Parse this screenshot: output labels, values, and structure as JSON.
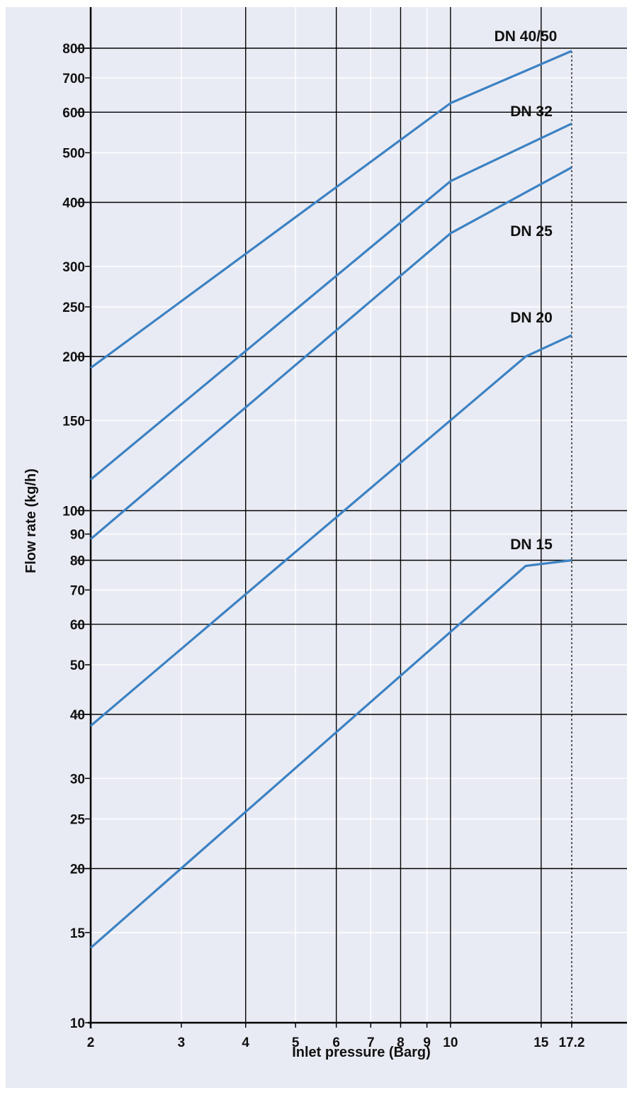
{
  "chart_data": {
    "type": "line",
    "title": "",
    "xlabel": "Inlet pressure (Barg)",
    "ylabel": "Flow rate (kg/h)",
    "x_scale": "log",
    "y_scale": "log",
    "xlim": [
      2,
      17.2
    ],
    "ylim": [
      10,
      800
    ],
    "x_ticks": [
      {
        "value": 2,
        "label": "2"
      },
      {
        "value": 3,
        "label": "3"
      },
      {
        "value": 4,
        "label": "4"
      },
      {
        "value": 5,
        "label": "5"
      },
      {
        "value": 6,
        "label": "6"
      },
      {
        "value": 7,
        "label": "7"
      },
      {
        "value": 8,
        "label": "8"
      },
      {
        "value": 9,
        "label": "9"
      },
      {
        "value": 10,
        "label": "10"
      },
      {
        "value": 15,
        "label": "15"
      },
      {
        "value": 17.2,
        "label": "17.2"
      }
    ],
    "y_ticks": [
      {
        "value": 10,
        "label": "10"
      },
      {
        "value": 15,
        "label": "15"
      },
      {
        "value": 20,
        "label": "20"
      },
      {
        "value": 25,
        "label": "25"
      },
      {
        "value": 30,
        "label": "30"
      },
      {
        "value": 40,
        "label": "40"
      },
      {
        "value": 50,
        "label": "50"
      },
      {
        "value": 60,
        "label": "60"
      },
      {
        "value": 70,
        "label": "70"
      },
      {
        "value": 80,
        "label": "80"
      },
      {
        "value": 90,
        "label": "90"
      },
      {
        "value": 100,
        "label": "100"
      },
      {
        "value": 150,
        "label": "150"
      },
      {
        "value": 200,
        "label": "200"
      },
      {
        "value": 250,
        "label": "250"
      },
      {
        "value": 300,
        "label": "300"
      },
      {
        "value": 400,
        "label": "400"
      },
      {
        "value": 500,
        "label": "500"
      },
      {
        "value": 600,
        "label": "600"
      },
      {
        "value": 700,
        "label": "700"
      },
      {
        "value": 800,
        "label": "800"
      }
    ],
    "major_gridlines_x": [
      4,
      6,
      8,
      10,
      15
    ],
    "major_gridlines_y": [
      10,
      20,
      40,
      60,
      80,
      100,
      200,
      400,
      600,
      800
    ],
    "reference_line_x": 17.2,
    "series": [
      {
        "name": "DN 40/50",
        "points": [
          [
            2,
            190
          ],
          [
            10,
            625
          ],
          [
            17.2,
            790
          ]
        ]
      },
      {
        "name": "DN 32",
        "points": [
          [
            2,
            115
          ],
          [
            10,
            440
          ],
          [
            17.2,
            570
          ]
        ]
      },
      {
        "name": "DN 25",
        "points": [
          [
            2,
            88
          ],
          [
            10,
            348
          ],
          [
            17.2,
            468
          ]
        ]
      },
      {
        "name": "DN 20",
        "points": [
          [
            2,
            38
          ],
          [
            14,
            200
          ],
          [
            17.2,
            220
          ]
        ]
      },
      {
        "name": "DN 15",
        "points": [
          [
            2,
            14
          ],
          [
            14,
            78
          ],
          [
            17.2,
            80
          ]
        ]
      }
    ],
    "colors": {
      "background": "#e9ebf4",
      "series_line": "#3c82c3",
      "major_grid": "#000000",
      "minor_grid": "#ffffff"
    },
    "grid": true,
    "legend": "labels at line ends"
  }
}
